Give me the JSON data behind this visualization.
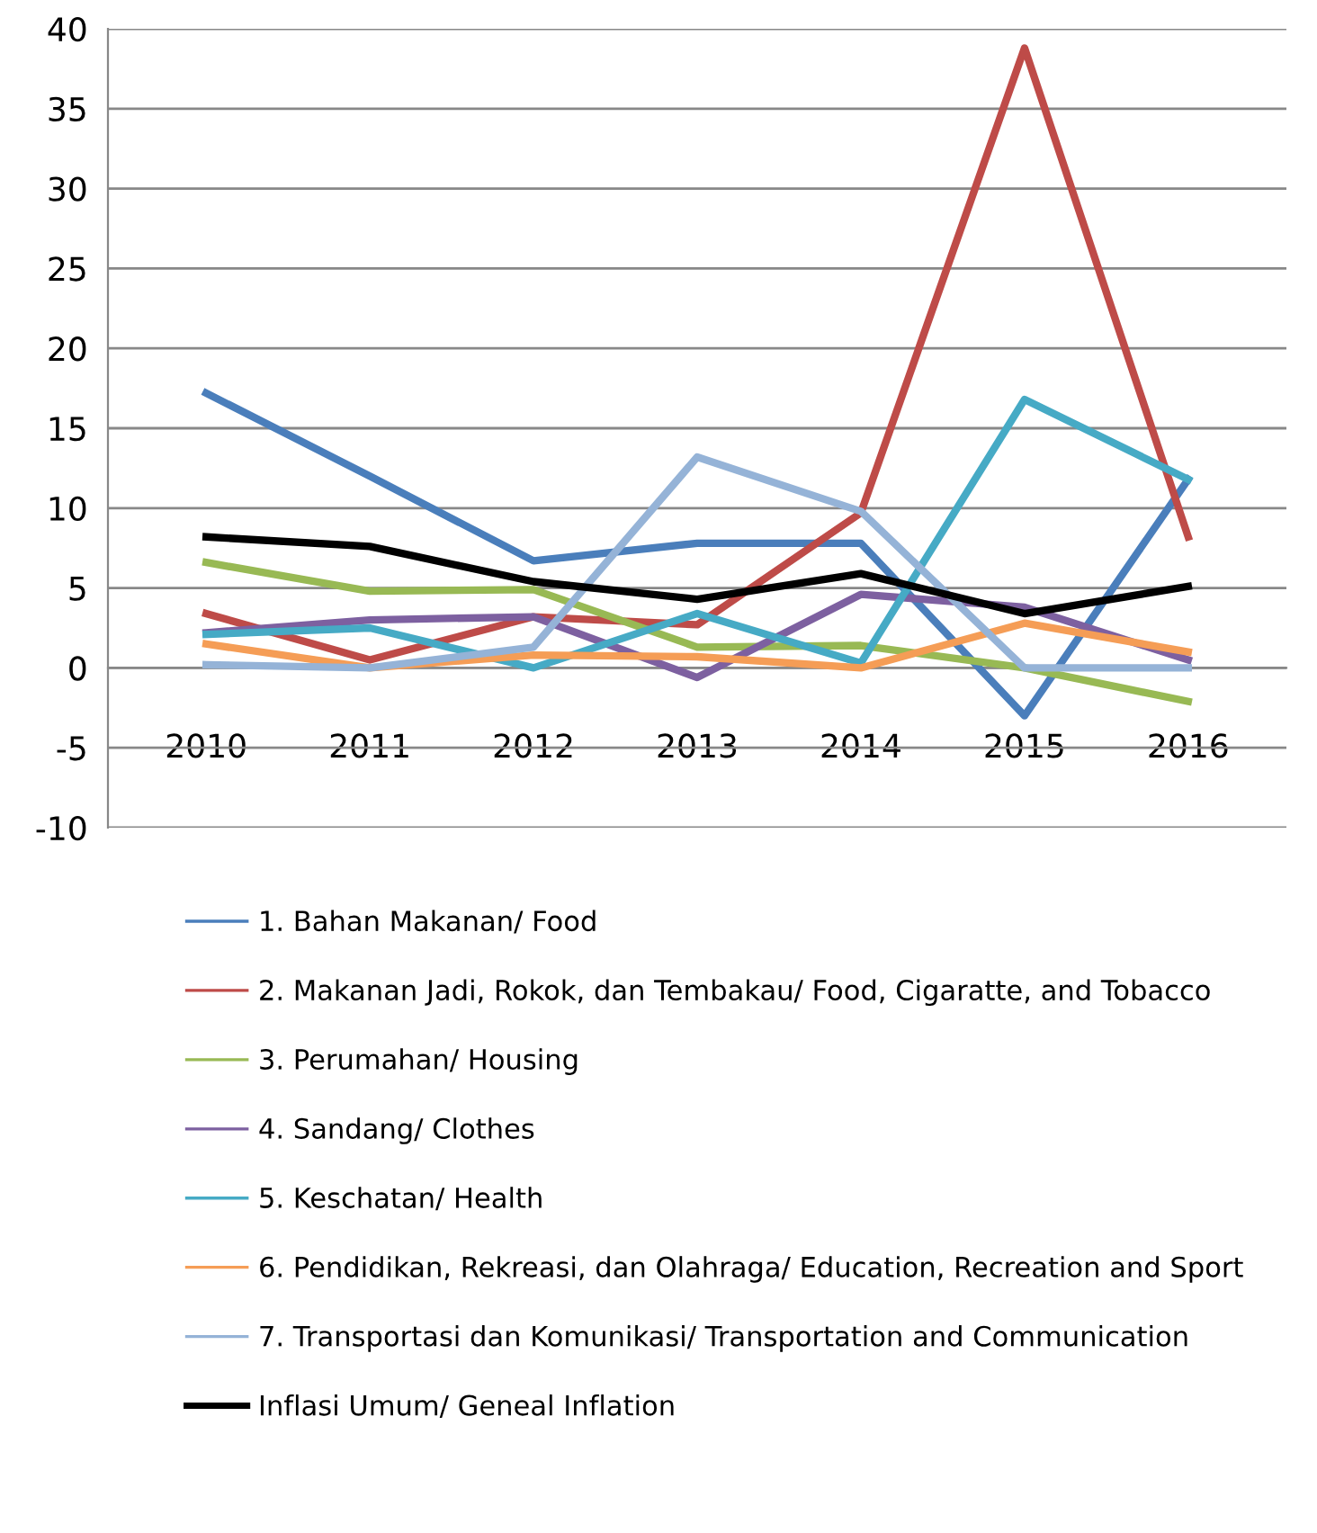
{
  "chart_data": {
    "type": "line",
    "categories": [
      "2010",
      "2011",
      "2012",
      "2013",
      "2014",
      "2015",
      "2016"
    ],
    "series": [
      {
        "name": "1. Bahan Makanan/ Food",
        "color": "#4a7ebb",
        "values": [
          17.2,
          12,
          6.7,
          7.8,
          7.8,
          -3,
          11.8
        ]
      },
      {
        "name": "2. Makanan Jadi, Rokok, dan Tembakau/ Food, Cigaratte, and Tobacco",
        "color": "#be4b48",
        "values": [
          3.4,
          0.5,
          3.2,
          2.7,
          9.7,
          38.8,
          8.2
        ]
      },
      {
        "name": "3. Perumahan/ Housing",
        "color": "#98b954",
        "values": [
          6.6,
          4.8,
          4.9,
          1.3,
          1.4,
          0,
          -2.1
        ]
      },
      {
        "name": "4. Sandang/ Clothes",
        "color": "#7d60a0",
        "values": [
          2.2,
          3.0,
          3.2,
          -0.6,
          4.6,
          3.8,
          0.5
        ]
      },
      {
        "name": "5. Keschatan/ Health",
        "color": "#46aac5",
        "values": [
          2.1,
          2.5,
          0,
          3.4,
          0.3,
          16.8,
          11.8
        ]
      },
      {
        "name": "6. Pendidikan, Rekreasi, dan Olahraga/ Education, Recreation and Sport",
        "color": "#f59d56",
        "values": [
          1.5,
          0,
          0.8,
          0.7,
          0,
          2.8,
          1.0
        ]
      },
      {
        "name": "7. Transportasi dan Komunikasi/ Transportation and Communication",
        "color": "#95b3d7",
        "values": [
          0.2,
          0,
          1.3,
          13.2,
          9.8,
          0,
          0
        ]
      },
      {
        "name": "Inflasi Umum/ Geneal Inflation",
        "color": "#000000",
        "values": [
          8.2,
          7.6,
          5.4,
          4.3,
          5.9,
          3.4,
          5.1
        ]
      }
    ],
    "ylim": [
      -10,
      40
    ],
    "yticks": [
      -10,
      -5,
      0,
      5,
      10,
      15,
      20,
      25,
      30,
      35,
      40
    ],
    "grid": "y",
    "legend": "bottom",
    "marker": "none",
    "line_style": "solid"
  }
}
